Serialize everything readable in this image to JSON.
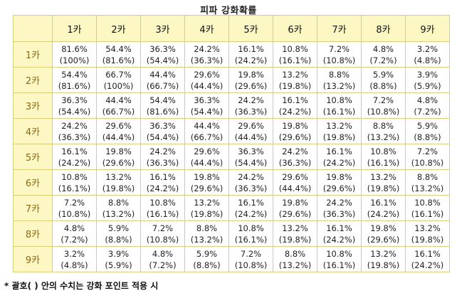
{
  "title": "피파 강화확률",
  "col_headers": [
    "1카",
    "2카",
    "3카",
    "4카",
    "5카",
    "6카",
    "7카",
    "8카",
    "9카"
  ],
  "rows": [
    {
      "label": "1카",
      "cells": [
        [
          "81.6%",
          "(100%)"
        ],
        [
          "54.4%",
          "(81.6%)"
        ],
        [
          "36.3%",
          "(54.4%)"
        ],
        [
          "24.2%",
          "(36.3%)"
        ],
        [
          "16.1%",
          "(24.2%)"
        ],
        [
          "10.8%",
          "(16.1%)"
        ],
        [
          "7.2%",
          "(10.8%)"
        ],
        [
          "4.8%",
          "(7.2%)"
        ],
        [
          "3.2%",
          "(4.8%)"
        ]
      ]
    },
    {
      "label": "2카",
      "cells": [
        [
          "54.4%",
          "(81.6%)"
        ],
        [
          "66.7%",
          "(100%)"
        ],
        [
          "44.4%",
          "(66.7%)"
        ],
        [
          "29.6%",
          "(44.4%)"
        ],
        [
          "19.8%",
          "(29.6%)"
        ],
        [
          "13.2%",
          "(19.8%)"
        ],
        [
          "8.8%",
          "(13.2%)"
        ],
        [
          "5.9%",
          "(8.8%)"
        ],
        [
          "3.9%",
          "(5.9%)"
        ]
      ]
    },
    {
      "label": "3카",
      "cells": [
        [
          "36.3%",
          "(54.4%)"
        ],
        [
          "44.4%",
          "(66.7%)"
        ],
        [
          "54.4%",
          "(81.6%)"
        ],
        [
          "36.3%",
          "(54.4%)"
        ],
        [
          "24.2%",
          "(36.3%)"
        ],
        [
          "16.1%",
          "(24.2%)"
        ],
        [
          "10.8%",
          "(16.1%)"
        ],
        [
          "7.2%",
          "(10.8%)"
        ],
        [
          "4.8%",
          "(7.2%)"
        ]
      ]
    },
    {
      "label": "4카",
      "cells": [
        [
          "24.2%",
          "(36.3%)"
        ],
        [
          "29.6%",
          "(44.4%)"
        ],
        [
          "36.3%",
          "(54.4%)"
        ],
        [
          "44.4%",
          "(66.7%)"
        ],
        [
          "29.6%",
          "(44.4%)"
        ],
        [
          "19.8%",
          "(29.6%)"
        ],
        [
          "13.2%",
          "(19.8%)"
        ],
        [
          "8.8%",
          "(13.2%)"
        ],
        [
          "5.9%",
          "(8.8%)"
        ]
      ]
    },
    {
      "label": "5카",
      "cells": [
        [
          "16.1%",
          "(24.2%)"
        ],
        [
          "19.8%",
          "(29.6%)"
        ],
        [
          "24.2%",
          "(36.3%)"
        ],
        [
          "29.6%",
          "(44.4%)"
        ],
        [
          "36.3%",
          "(54.4%)"
        ],
        [
          "24.2%",
          "(36.3%)"
        ],
        [
          "16.1%",
          "(24.2%)"
        ],
        [
          "10.8%",
          "(16.1%)"
        ],
        [
          "7.2%",
          "(10.8%)"
        ]
      ]
    },
    {
      "label": "6카",
      "cells": [
        [
          "10.8%",
          "(16.1%)"
        ],
        [
          "13.2%",
          "(19.8%)"
        ],
        [
          "16.1%",
          "(24.2%)"
        ],
        [
          "19.8%",
          "(29.6%)"
        ],
        [
          "24.2%",
          "(36.3%)"
        ],
        [
          "29.6%",
          "(44.4%)"
        ],
        [
          "19.8%",
          "(29.6%)"
        ],
        [
          "13.2%",
          "(19.8%)"
        ],
        [
          "8.8%",
          "(13.2%)"
        ]
      ]
    },
    {
      "label": "7카",
      "cells": [
        [
          "7.2%",
          "(10.8%)"
        ],
        [
          "8.8%",
          "(13.2%)"
        ],
        [
          "10.8%",
          "(16.1%)"
        ],
        [
          "13.2%",
          "(19.8%)"
        ],
        [
          "16.1%",
          "(24.2%)"
        ],
        [
          "19.8%",
          "(29.6%)"
        ],
        [
          "24.2%",
          "(36.3%)"
        ],
        [
          "16.1%",
          "(24.2%)"
        ],
        [
          "10.8%",
          "(16.1%)"
        ]
      ]
    },
    {
      "label": "8카",
      "cells": [
        [
          "4.8%",
          "(7.2%)"
        ],
        [
          "5.9%",
          "(8.8%)"
        ],
        [
          "7.2%",
          "(10.8%)"
        ],
        [
          "8.8%",
          "(13.2%)"
        ],
        [
          "10.8%",
          "(16.1%)"
        ],
        [
          "13.2%",
          "(19.8%)"
        ],
        [
          "16.1%",
          "(24.2%)"
        ],
        [
          "19.8%",
          "(29.6%)"
        ],
        [
          "13.2%",
          "(19.8%)"
        ]
      ]
    },
    {
      "label": "9카",
      "cells": [
        [
          "3.2%",
          "(4.8%)"
        ],
        [
          "3.9%",
          "(5.9%)"
        ],
        [
          "4.8%",
          "(7.2%)"
        ],
        [
          "5.9%",
          "(8.8%)"
        ],
        [
          "7.2%",
          "(10.8%)"
        ],
        [
          "8.8%",
          "(13.2%)"
        ],
        [
          "10.8%",
          "(16.1%)"
        ],
        [
          "13.2%",
          "(19.8%)"
        ],
        [
          "16.1%",
          "(24.2%)"
        ]
      ]
    }
  ],
  "footnote": "* 괄호(   ) 안의 수치는 강화 포인트 적용 시",
  "colors": {
    "header_bg": "#fdf7c3",
    "border": "#d9cf7a",
    "row_label": "#8a6a12"
  }
}
